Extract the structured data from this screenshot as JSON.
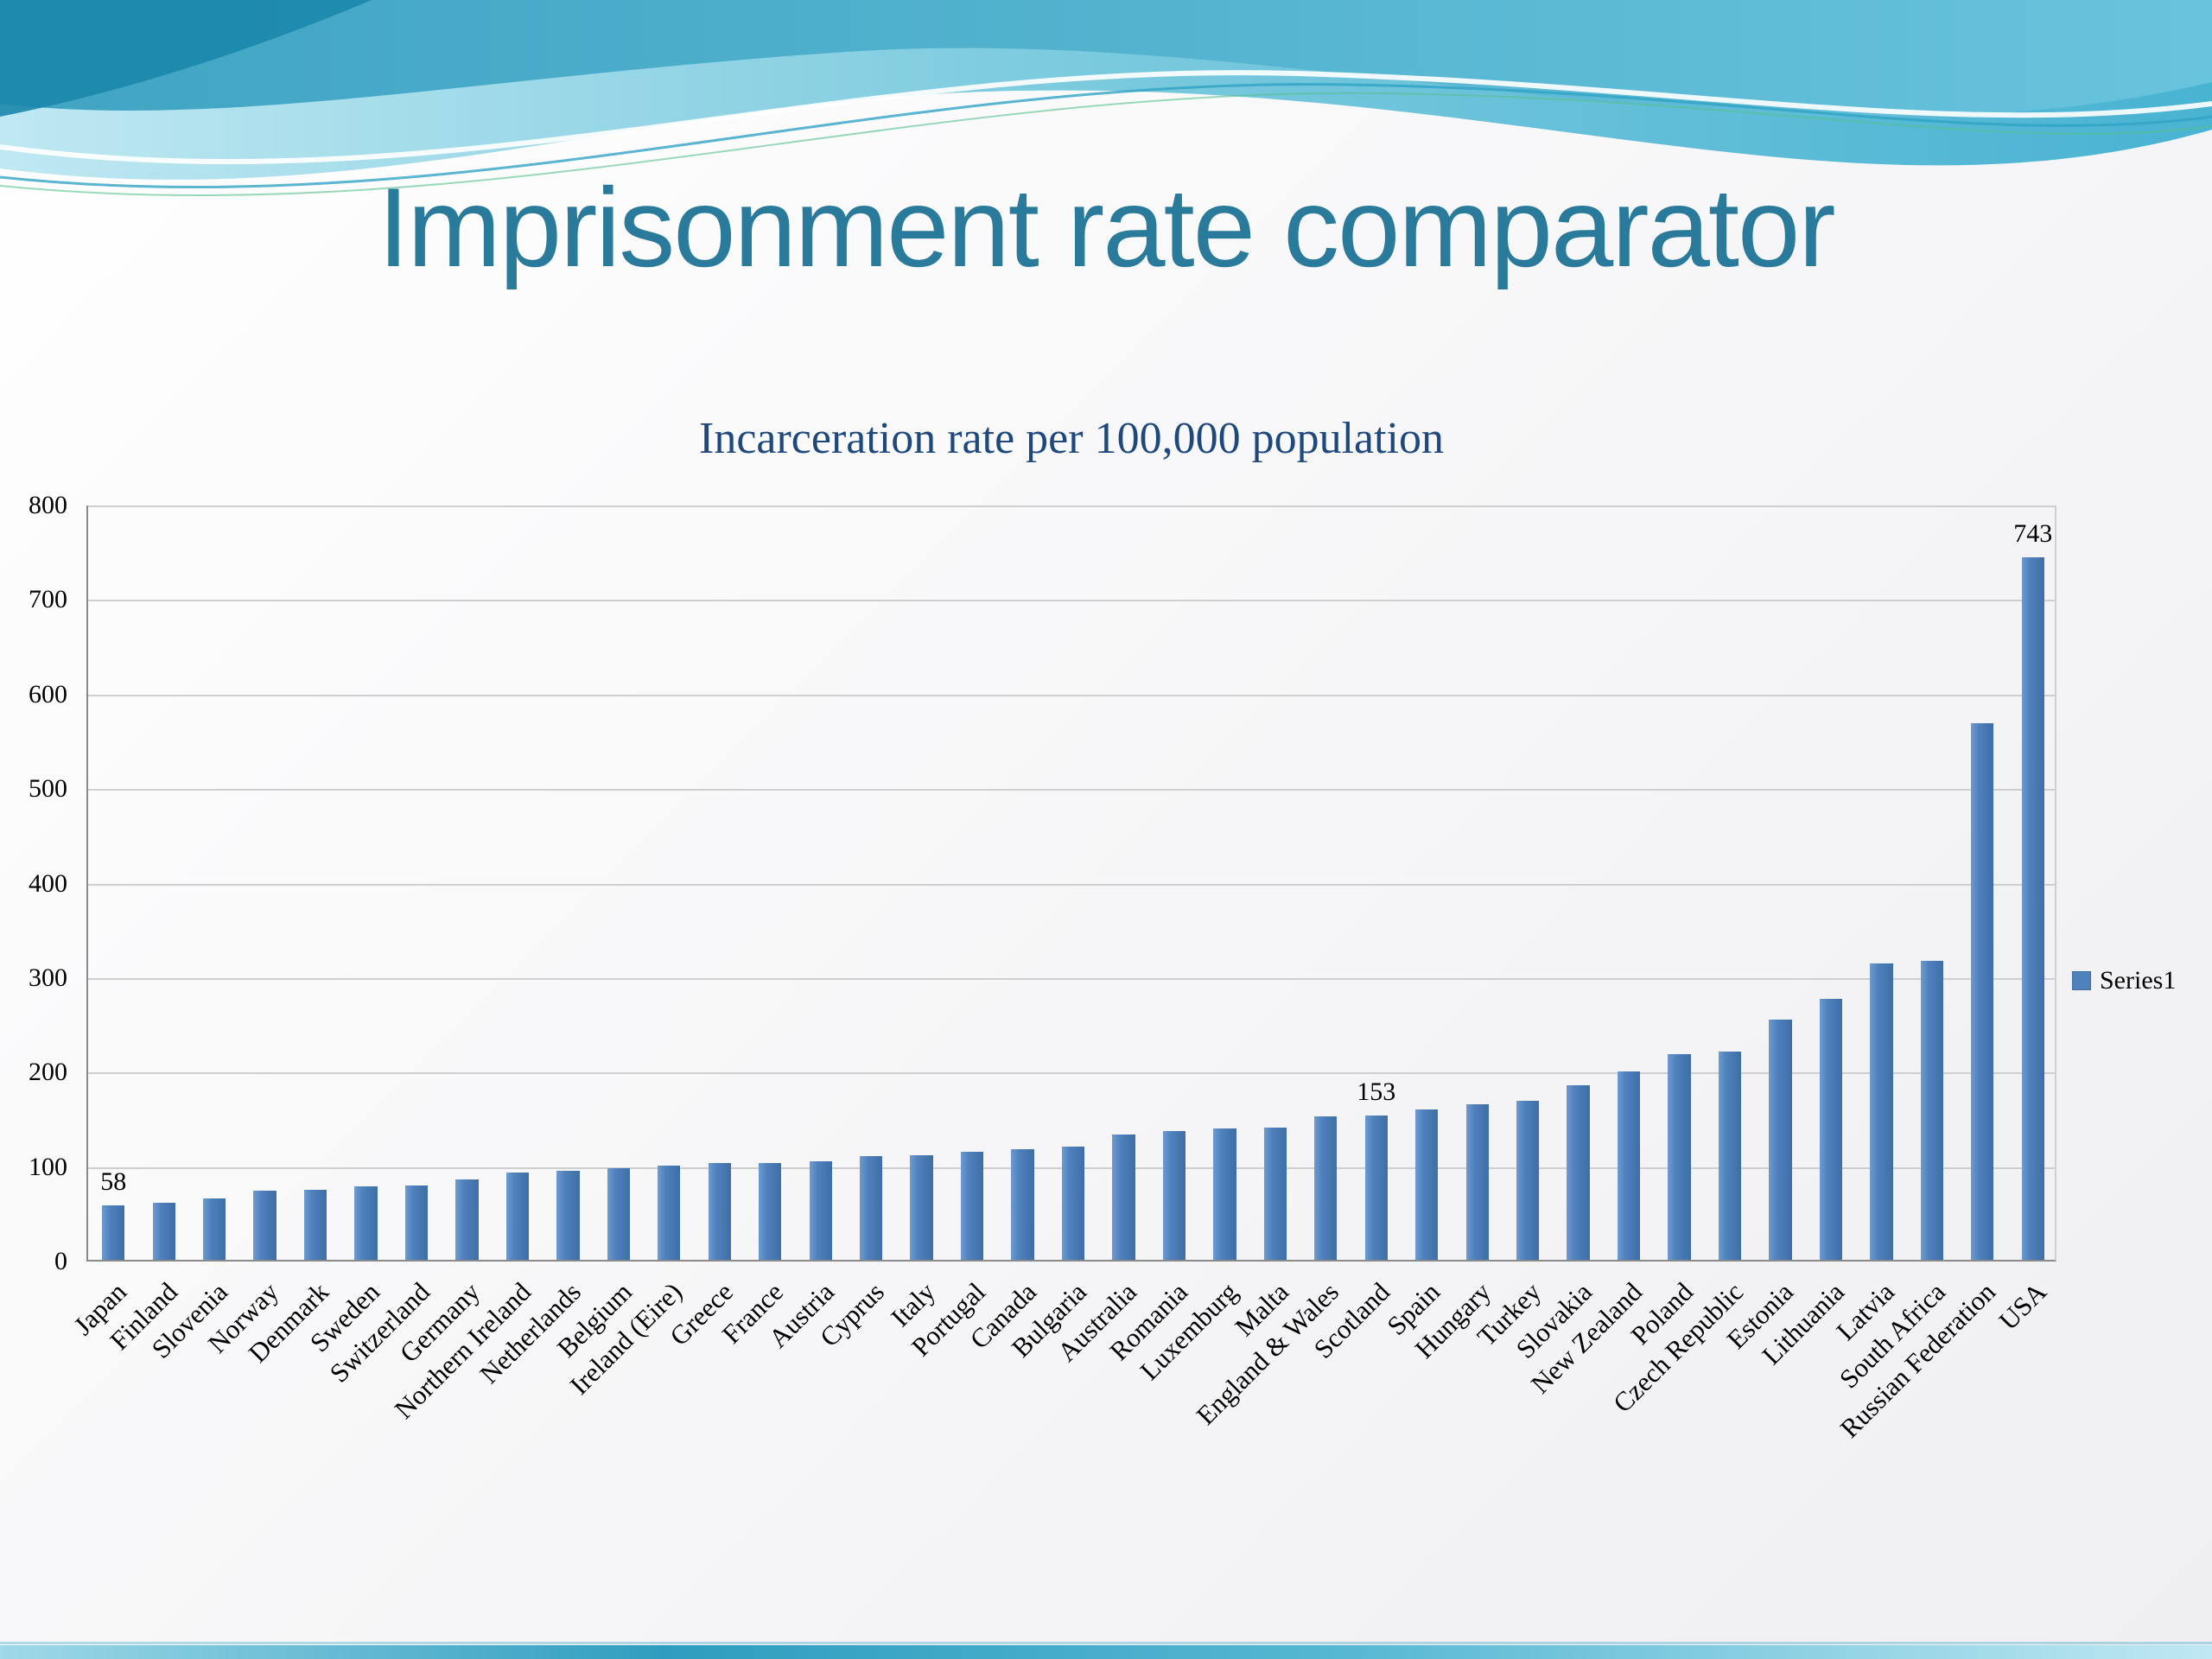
{
  "slide": {
    "title": "Imprisonment rate comparator"
  },
  "chart_data": {
    "type": "bar",
    "title": "Incarceration rate per 100,000 population",
    "xlabel": "",
    "ylabel": "",
    "ylim": [
      0,
      800
    ],
    "ytick_step": 100,
    "grid": true,
    "legend": [
      "Series1"
    ],
    "legend_position": "right",
    "bar_color": "#4F81BD",
    "colors": {
      "slide_title": "#2a7b9b",
      "chart_title": "#1F497D",
      "gridline": "#cfcfcf",
      "axis": "#8a8a8a"
    },
    "categories": [
      "Japan",
      "Finland",
      "Slovenia",
      "Norway",
      "Denmark",
      "Sweden",
      "Switzerland",
      "Germany",
      "Northern Ireland",
      "Netherlands",
      "Belgium",
      "Ireland (Eire)",
      "Greece",
      "France",
      "Austria",
      "Cyprus",
      "Italy",
      "Portugal",
      "Canada",
      "Bulgaria",
      "Australia",
      "Romania",
      "Luxemburg",
      "Malta",
      "England & Wales",
      "Scotland",
      "Spain",
      "Hungary",
      "Turkey",
      "Slovakia",
      "New Zealand",
      "Poland",
      "Czech Republic",
      "Estonia",
      "Lithuania",
      "Latvia",
      "South Africa",
      "Russian Federation",
      "USA"
    ],
    "values": [
      58,
      60,
      65,
      73,
      74,
      78,
      79,
      85,
      92,
      94,
      97,
      100,
      102,
      102,
      104,
      110,
      111,
      114,
      117,
      120,
      133,
      136,
      139,
      140,
      152,
      153,
      159,
      165,
      168,
      185,
      199,
      218,
      220,
      254,
      276,
      314,
      316,
      568,
      743
    ],
    "data_labels": {
      "Japan": "58",
      "Scotland": "153",
      "USA": "743"
    }
  }
}
